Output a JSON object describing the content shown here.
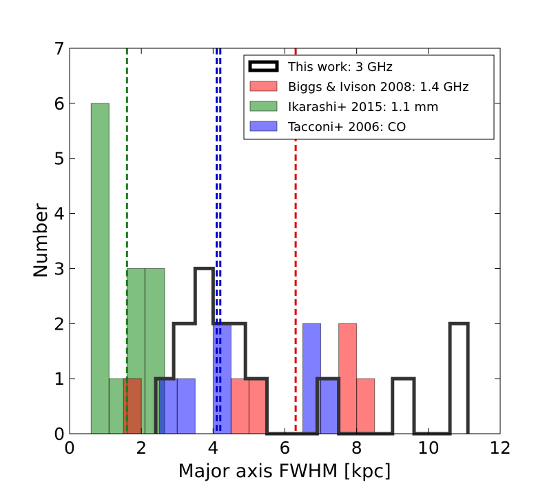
{
  "chart_data": {
    "type": "histogram",
    "xlabel": "Major axis FWHM [kpc]",
    "ylabel": "Number",
    "xlim": [
      0,
      12
    ],
    "ylim": [
      0,
      7
    ],
    "xticks": [
      "0",
      "2",
      "4",
      "6",
      "8",
      "10",
      "12"
    ],
    "yticks": [
      "0",
      "1",
      "2",
      "3",
      "4",
      "5",
      "6",
      "7"
    ],
    "legend_position": "top-right",
    "series": [
      {
        "name": "Ikarashi+ 2015: 1.1 mm",
        "style": "filled",
        "color": "#008000",
        "bins": [
          {
            "x0": 0.6,
            "x1": 1.1,
            "count": 6
          },
          {
            "x0": 1.1,
            "x1": 1.6,
            "count": 1
          },
          {
            "x0": 1.6,
            "x1": 2.1,
            "count": 3
          },
          {
            "x0": 2.1,
            "x1": 2.65,
            "count": 3
          },
          {
            "x0": 2.65,
            "x1": 3.9,
            "count": 0
          }
        ],
        "median_line": 1.6
      },
      {
        "name": "Biggs & Ivison 2008: 1.4 GHz",
        "style": "filled",
        "color": "#ff0000",
        "bins": [
          {
            "x0": 1.5,
            "x1": 2.0,
            "count": 1
          },
          {
            "x0": 4.5,
            "x1": 5.0,
            "count": 1
          },
          {
            "x0": 5.0,
            "x1": 5.5,
            "count": 1
          },
          {
            "x0": 7.5,
            "x1": 8.0,
            "count": 2
          },
          {
            "x0": 8.0,
            "x1": 8.5,
            "count": 1
          }
        ],
        "median_line": 6.3
      },
      {
        "name": "Tacconi+ 2006: CO",
        "style": "filled",
        "color": "#0000ff",
        "bins": [
          {
            "x0": 2.5,
            "x1": 3.0,
            "count": 1
          },
          {
            "x0": 3.0,
            "x1": 3.5,
            "count": 1
          },
          {
            "x0": 4.0,
            "x1": 4.5,
            "count": 2
          },
          {
            "x0": 6.5,
            "x1": 7.0,
            "count": 2
          },
          {
            "x0": 7.0,
            "x1": 7.5,
            "count": 1
          }
        ],
        "median_line": 4.1
      },
      {
        "name": "This work: 3 GHz",
        "style": "step",
        "color": "#333333",
        "bins": [
          {
            "x0": 2.4,
            "x1": 2.9,
            "count": 1
          },
          {
            "x0": 2.9,
            "x1": 3.5,
            "count": 2
          },
          {
            "x0": 3.5,
            "x1": 4.0,
            "count": 3
          },
          {
            "x0": 4.0,
            "x1": 4.5,
            "count": 2
          },
          {
            "x0": 4.5,
            "x1": 4.9,
            "count": 2
          },
          {
            "x0": 4.9,
            "x1": 5.5,
            "count": 1
          },
          {
            "x0": 5.5,
            "x1": 6.0,
            "count": 0
          },
          {
            "x0": 6.0,
            "x1": 6.5,
            "count": 0
          },
          {
            "x0": 6.5,
            "x1": 6.9,
            "count": 0
          },
          {
            "x0": 6.9,
            "x1": 7.5,
            "count": 1
          },
          {
            "x0": 7.5,
            "x1": 8.0,
            "count": 0
          },
          {
            "x0": 8.0,
            "x1": 8.5,
            "count": 0
          },
          {
            "x0": 8.5,
            "x1": 9.0,
            "count": 0
          },
          {
            "x0": 9.0,
            "x1": 9.6,
            "count": 1
          },
          {
            "x0": 9.6,
            "x1": 10.1,
            "count": 0
          },
          {
            "x0": 10.1,
            "x1": 10.6,
            "count": 0
          },
          {
            "x0": 10.6,
            "x1": 11.1,
            "count": 2
          }
        ],
        "median_line": 4.2
      }
    ]
  },
  "legend_items": [
    {
      "label": "This work: 3 GHz",
      "style": "step",
      "color": "#000000"
    },
    {
      "label": "Biggs & Ivison 2008: 1.4 GHz",
      "style": "fill",
      "color": "#ff0000"
    },
    {
      "label": "Ikarashi+ 2015: 1.1 mm",
      "style": "fill",
      "color": "#008000"
    },
    {
      "label": "Tacconi+ 2006: CO",
      "style": "fill",
      "color": "#0000ff"
    }
  ]
}
